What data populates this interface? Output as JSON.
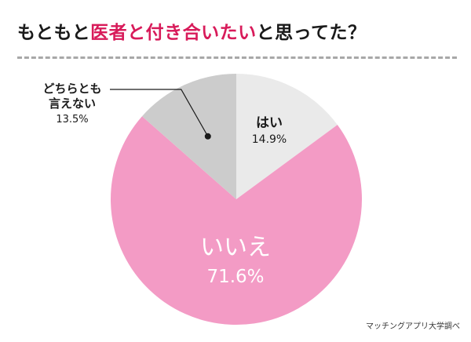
{
  "title": {
    "prefix": "もともと",
    "highlight": "医者と付き合いたい",
    "suffix": "と思ってた？"
  },
  "source": "マッチングアプリ大学調べ",
  "colors": {
    "accent": "#d81b5a",
    "yes": "#eaeaea",
    "no": "#f39bc5",
    "neither": "#cccccc"
  },
  "chart_data": {
    "type": "pie",
    "title": "もともと医者と付き合いたいと思ってた？",
    "slices": [
      {
        "label": "はい",
        "value": 14.9,
        "value_label": "14.9%",
        "color": "#eaeaea"
      },
      {
        "label": "いいえ",
        "value": 71.6,
        "value_label": "71.6%",
        "color": "#f39bc5"
      },
      {
        "label": "どちらとも言えない",
        "label_lines": [
          "どちらとも",
          "言えない"
        ],
        "value": 13.5,
        "value_label": "13.5%",
        "color": "#cccccc"
      }
    ],
    "start": "12 o'clock",
    "direction": "clockwise"
  }
}
